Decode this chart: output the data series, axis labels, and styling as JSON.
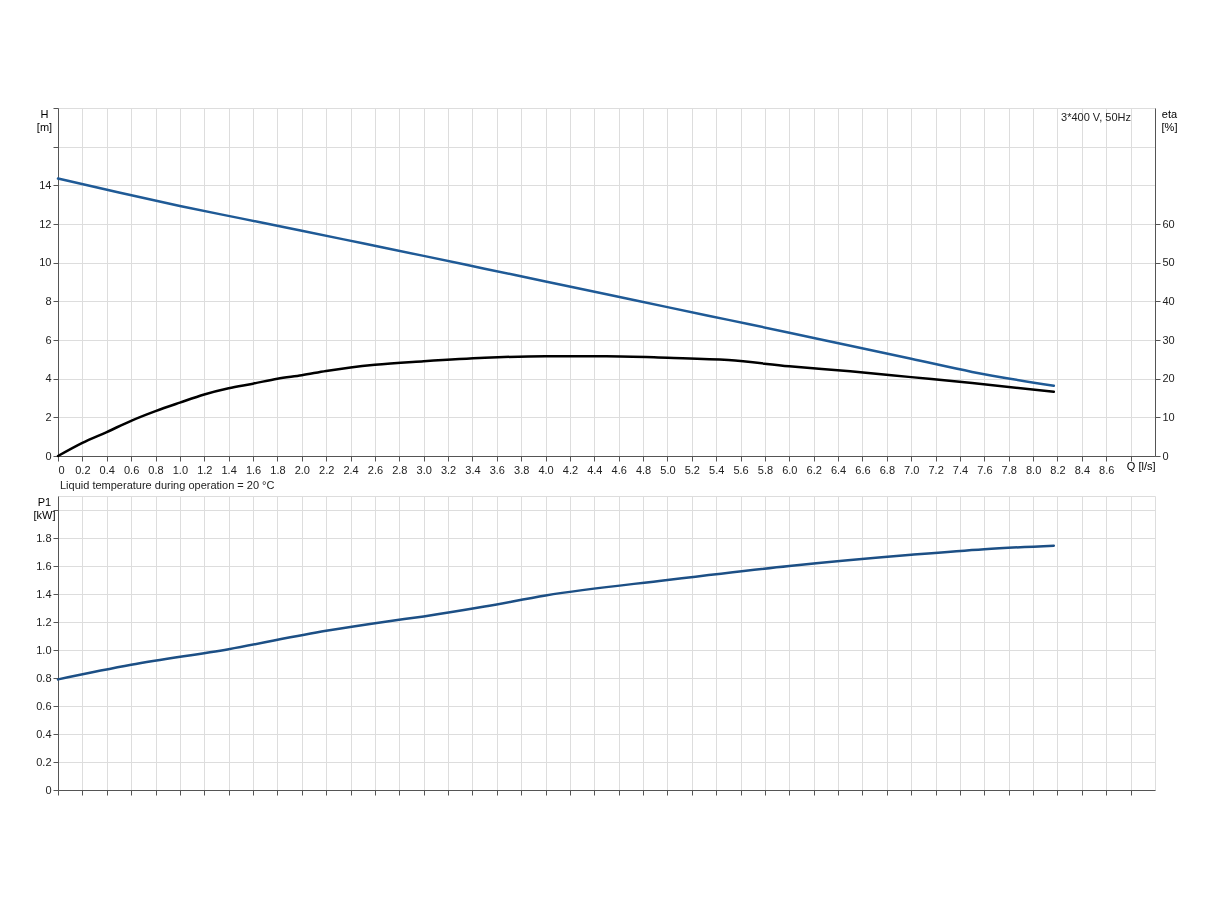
{
  "chart_data": [
    {
      "type": "line",
      "ylabel": "H\n[m]",
      "y2label": "eta\n[%]",
      "xlabel": "Q [l/s]",
      "annotations": [
        "3*400 V, 50Hz",
        "Liquid temperature during operation = 20 °C"
      ],
      "xlim": [
        0,
        9.0
      ],
      "xticks": [
        0,
        0.2,
        0.4,
        0.6,
        0.8,
        {
          "value": 1,
          "label": "1.0"
        },
        1.2,
        1.4,
        1.6,
        1.8,
        {
          "value": 2,
          "label": "2.0"
        },
        2.2,
        2.4,
        2.6,
        2.8,
        {
          "value": 3,
          "label": "3.0"
        },
        3.2,
        3.4,
        3.6,
        3.8,
        {
          "value": 4,
          "label": "4.0"
        },
        4.2,
        4.4,
        4.6,
        4.8,
        {
          "value": 5,
          "label": "5.0"
        },
        5.2,
        5.4,
        5.6,
        5.8,
        {
          "value": 6,
          "label": "6.0"
        },
        6.2,
        6.4,
        6.6,
        6.8,
        {
          "value": 7,
          "label": "7.0"
        },
        7.2,
        7.4,
        7.6,
        7.8,
        {
          "value": 8,
          "label": "8.0"
        },
        8.2,
        8.4,
        8.6,
        {
          "value": 8.8,
          "label": null
        }
      ],
      "ylim": [
        0,
        18
      ],
      "yticks": [
        0,
        2,
        4,
        6,
        8,
        10,
        12,
        14,
        {
          "value": 16,
          "label": null
        },
        {
          "value": 18,
          "label": null
        }
      ],
      "y2lim": [
        0,
        90
      ],
      "y2ticks": [
        0,
        10,
        20,
        30,
        40,
        50,
        60
      ],
      "grid": true,
      "marker": "none",
      "line_style": "solid",
      "series": [
        {
          "color": "#1f5a96",
          "x": [
            0,
            0.5,
            1.0,
            1.5,
            2.0,
            2.5,
            3.0,
            3.5,
            4.0,
            4.5,
            5.0,
            5.5,
            6.0,
            6.5,
            7.0,
            7.5,
            8.17
          ],
          "values": [
            14.35,
            13.63,
            12.93,
            12.29,
            11.65,
            11.0,
            10.35,
            9.69,
            9.03,
            8.37,
            7.7,
            7.04,
            6.38,
            5.7,
            5.03,
            4.35,
            3.63
          ]
        },
        {
          "color": "#000000",
          "axis": "y2",
          "x": [
            0,
            0.2,
            0.4,
            0.6,
            0.8,
            1.0,
            1.2,
            1.4,
            1.6,
            1.8,
            2.0,
            2.2,
            2.4,
            2.6,
            3.0,
            3.5,
            4.0,
            4.5,
            5.0,
            5.5,
            6.0,
            6.5,
            7.0,
            7.5,
            8.17
          ],
          "values": [
            0,
            3.4,
            6.2,
            9.1,
            11.6,
            13.8,
            15.9,
            17.5,
            18.7,
            20.0,
            20.9,
            22.0,
            22.9,
            23.6,
            24.5,
            25.4,
            25.8,
            25.8,
            25.4,
            24.8,
            23.2,
            21.9,
            20.4,
            18.9,
            16.6
          ]
        }
      ]
    },
    {
      "type": "line",
      "ylabel": "P1\n[kW]",
      "tick_labels": "y",
      "xlim": [
        0,
        9.0
      ],
      "xticks": [
        0,
        0.2,
        0.4,
        0.6,
        0.8,
        1.0,
        1.2,
        1.4,
        1.6,
        1.8,
        2.0,
        2.2,
        2.4,
        2.6,
        2.8,
        3.0,
        3.2,
        3.4,
        3.6,
        3.8,
        4.0,
        4.2,
        4.4,
        4.6,
        4.8,
        5.0,
        5.2,
        5.4,
        5.6,
        5.8,
        6.0,
        6.2,
        6.4,
        6.6,
        6.8,
        7.0,
        7.2,
        7.4,
        7.6,
        7.8,
        8.0,
        8.2,
        8.4,
        8.6,
        8.8
      ],
      "ylim": [
        0,
        2.1
      ],
      "yticks": [
        0,
        0.2,
        0.4,
        0.6,
        0.8,
        {
          "value": 1,
          "label": "1.0"
        },
        1.2,
        1.4,
        1.6,
        1.8,
        {
          "value": 2,
          "label": null
        }
      ],
      "grid": true,
      "marker": "none",
      "line_style": "solid",
      "series": [
        {
          "color": "#1c4f85",
          "x": [
            0,
            0.6,
            1.4,
            2.2,
            2.7,
            3.0,
            3.5,
            4.0,
            5.0,
            6.0,
            7.0,
            7.6,
            8.17
          ],
          "values": [
            0.79,
            0.894,
            1.006,
            1.137,
            1.204,
            1.24,
            1.31,
            1.39,
            1.5,
            1.6,
            1.68,
            1.72,
            1.745
          ]
        }
      ]
    }
  ]
}
